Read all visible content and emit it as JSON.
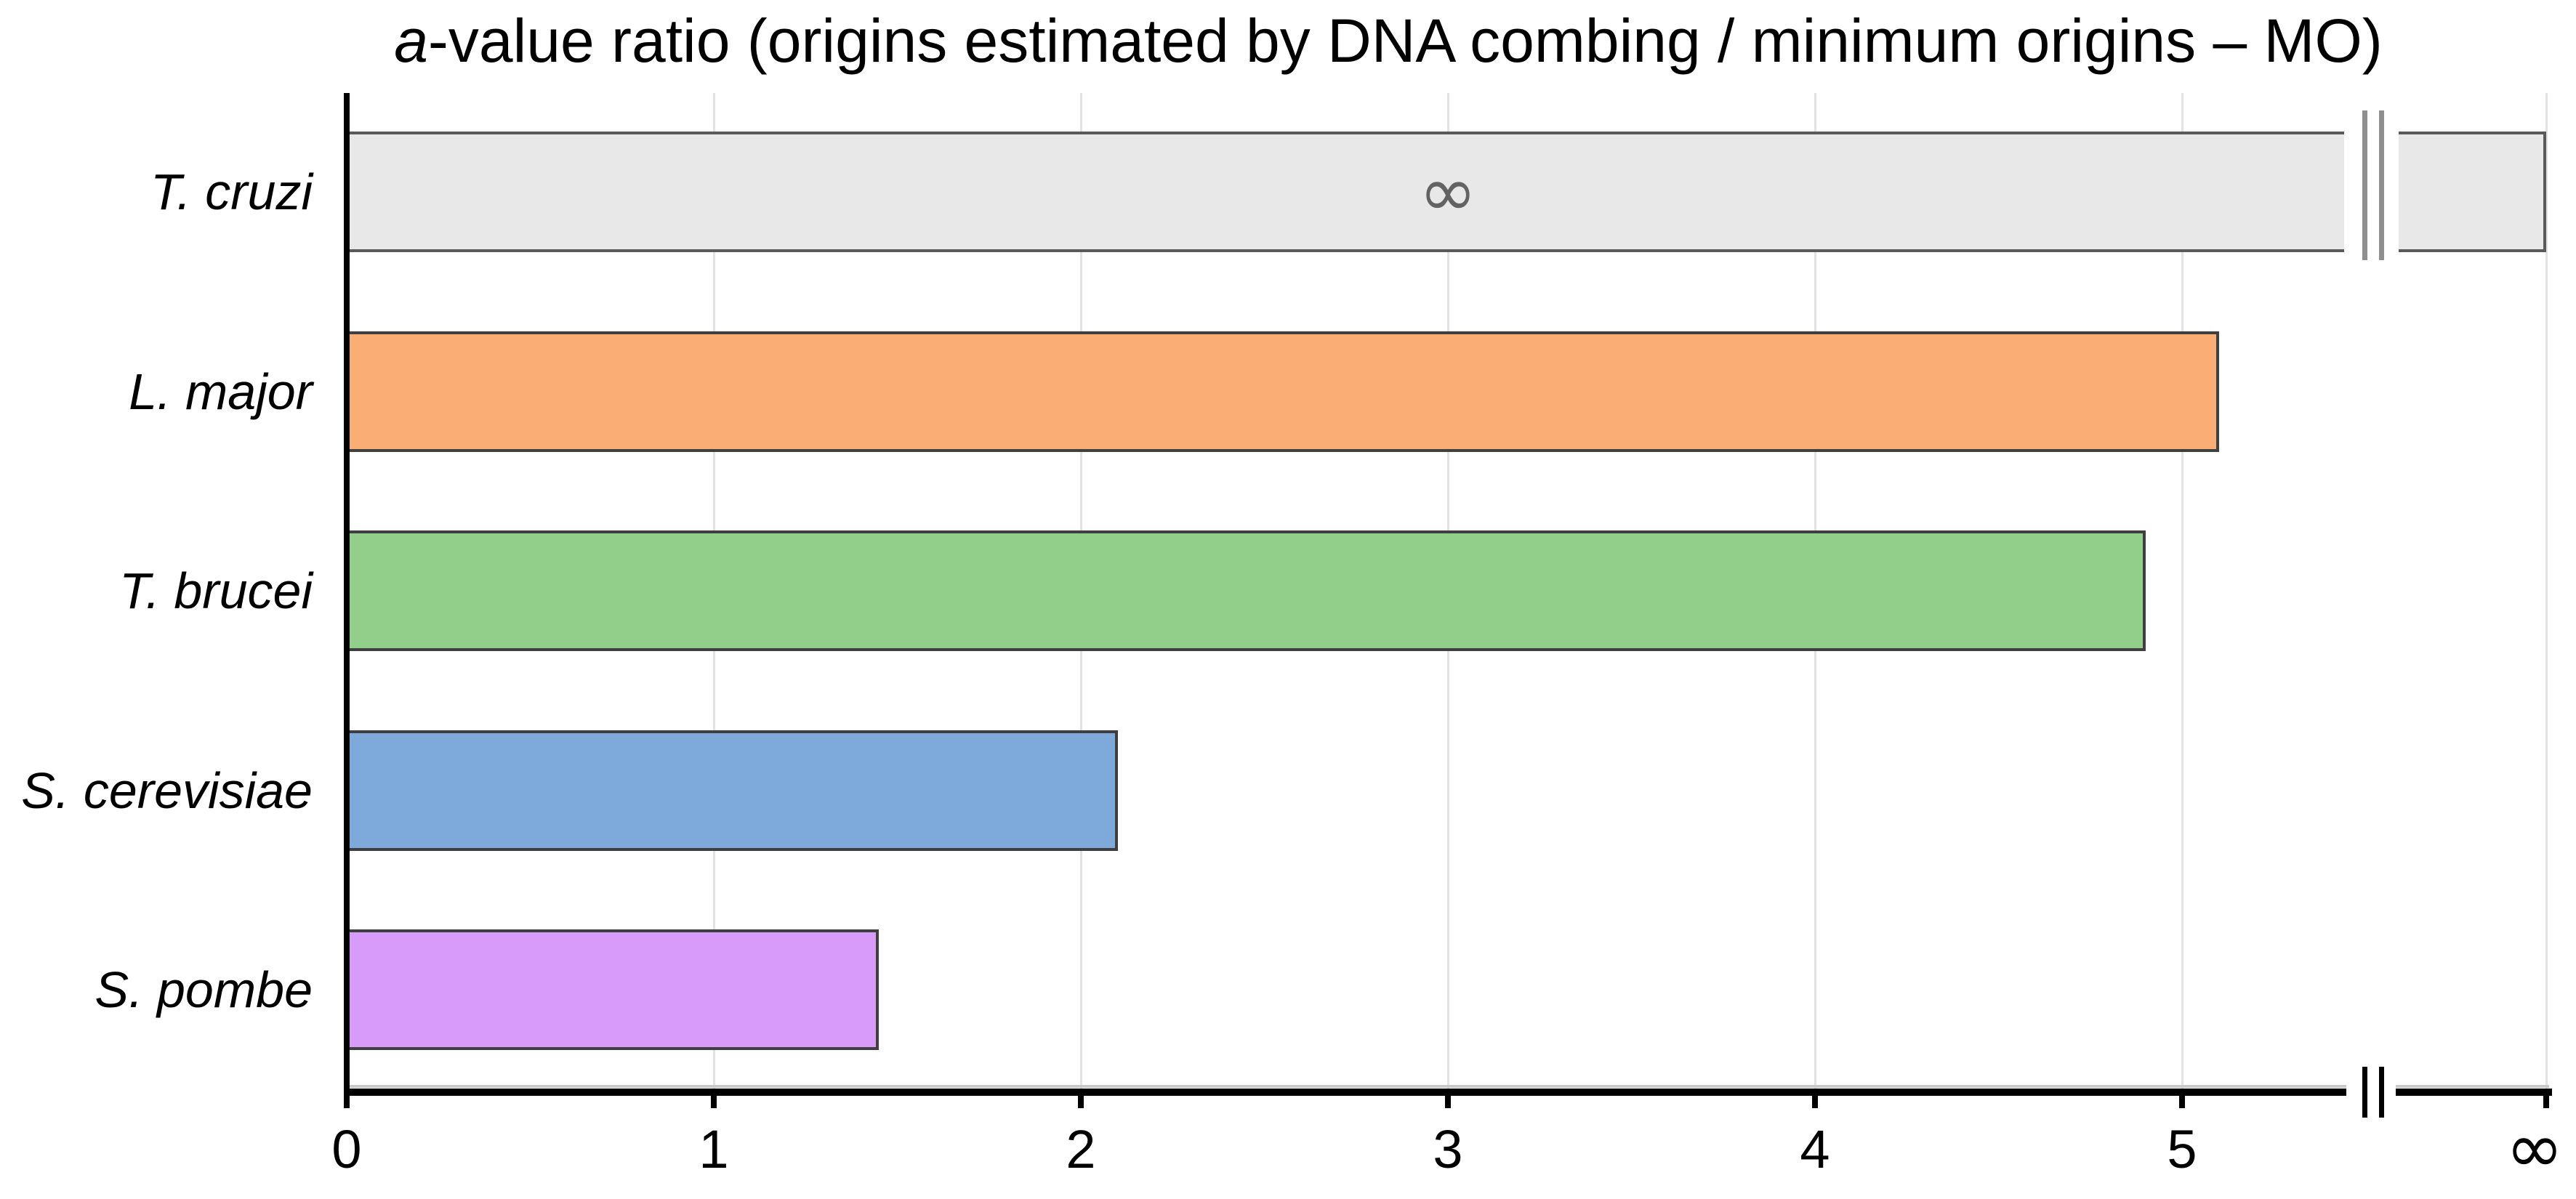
{
  "figure": {
    "title_italic": "a",
    "title_rest": "-value ratio (origins estimated by DNA combing / minimum origins – MO)"
  },
  "chart_data": {
    "type": "bar",
    "orientation": "horizontal",
    "title": "a-value ratio (origins estimated by DNA combing / minimum origins – MO)",
    "categories": [
      "T. cruzi",
      "L. major",
      "T. brucei",
      "S. cerevisiae",
      "S. pombe"
    ],
    "values": [
      null,
      5.1,
      4.9,
      2.1,
      1.45
    ],
    "infinite_bar": {
      "category": "T. cruzi",
      "display_value": "∞",
      "note": "bar runs off-scale through an axis break to infinity"
    },
    "bar_colors": [
      "#e8e8e8",
      "#fbad76",
      "#92cf8b",
      "#7ea9db",
      "#d99bfa"
    ],
    "bar_border_color": "#3f3f3f",
    "gray_bar_border_color": "#5a5a5a",
    "x_ticks_numeric": [
      0,
      1,
      2,
      3,
      4,
      5
    ],
    "x_tick_labels": [
      "0",
      "1",
      "2",
      "3",
      "4",
      "5",
      "∞"
    ],
    "infinity_tick_label": "∞",
    "xlim": [
      0,
      6
    ],
    "axis_break_at": 5.52,
    "grid": "vertical light-gray gridlines at each tick",
    "legend": "none",
    "xlabel": "",
    "ylabel": ""
  }
}
